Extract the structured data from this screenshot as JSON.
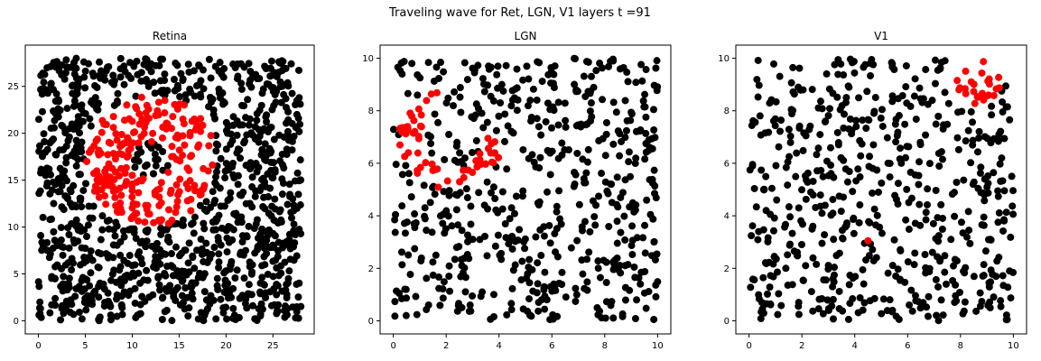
{
  "figure": {
    "suptitle": "Traveling wave for Ret, LGN, V1 layers t =91"
  },
  "colors": {
    "inactive": "#000000",
    "active": "#ff0000"
  },
  "chart_data": [
    {
      "type": "scatter",
      "title": "Retina",
      "xlabel": "",
      "ylabel": "",
      "xlim": [
        -1.4,
        29.4
      ],
      "ylim": [
        -1.4,
        29.4
      ],
      "xticks": [
        0,
        5,
        10,
        15,
        20,
        25
      ],
      "yticks": [
        0,
        5,
        10,
        15,
        20,
        25
      ],
      "grid": false,
      "inactive_neurons": {
        "description": "uniform random grid of neurons over [0,28]x[0,28]",
        "count": 1400,
        "x_range": [
          0,
          28
        ],
        "y_range": [
          0,
          28
        ],
        "seed": 11
      },
      "active_region": {
        "shape": "ring",
        "center": [
          12,
          17
        ],
        "inner_radius": 2.0,
        "outer_radius": 7.0,
        "count": 230,
        "seed": 21
      }
    },
    {
      "type": "scatter",
      "title": "LGN",
      "xlabel": "",
      "ylabel": "",
      "xlim": [
        -0.5,
        10.5
      ],
      "ylim": [
        -0.5,
        10.5
      ],
      "xticks": [
        0,
        2,
        4,
        6,
        8,
        10
      ],
      "yticks": [
        0,
        2,
        4,
        6,
        8,
        10
      ],
      "grid": false,
      "inactive_neurons": {
        "description": "uniform random neurons over [0,10]x[0,10]",
        "count": 600,
        "x_range": [
          0,
          10
        ],
        "y_range": [
          0,
          10
        ],
        "seed": 33
      },
      "active_region": {
        "shape": "arc",
        "center": [
          2.2,
          7.0
        ],
        "inner_radius": 1.2,
        "outer_radius": 2.0,
        "angle_range_deg": [
          100,
          360
        ],
        "count": 60,
        "seed": 41
      }
    },
    {
      "type": "scatter",
      "title": "V1",
      "xlabel": "",
      "ylabel": "",
      "xlim": [
        -0.5,
        10.5
      ],
      "ylim": [
        -0.5,
        10.5
      ],
      "xticks": [
        0,
        2,
        4,
        6,
        8,
        10
      ],
      "yticks": [
        0,
        2,
        4,
        6,
        8,
        10
      ],
      "grid": false,
      "inactive_neurons": {
        "description": "uniform random neurons over [0,10]x[0,10]",
        "count": 600,
        "x_range": [
          0,
          10
        ],
        "y_range": [
          0,
          10
        ],
        "seed": 55
      },
      "active_region": {
        "shape": "cluster",
        "center": [
          8.7,
          9.1
        ],
        "outer_radius": 0.9,
        "count": 25,
        "seed": 61,
        "extra_points": [
          [
            4.5,
            3.05
          ]
        ]
      }
    }
  ]
}
